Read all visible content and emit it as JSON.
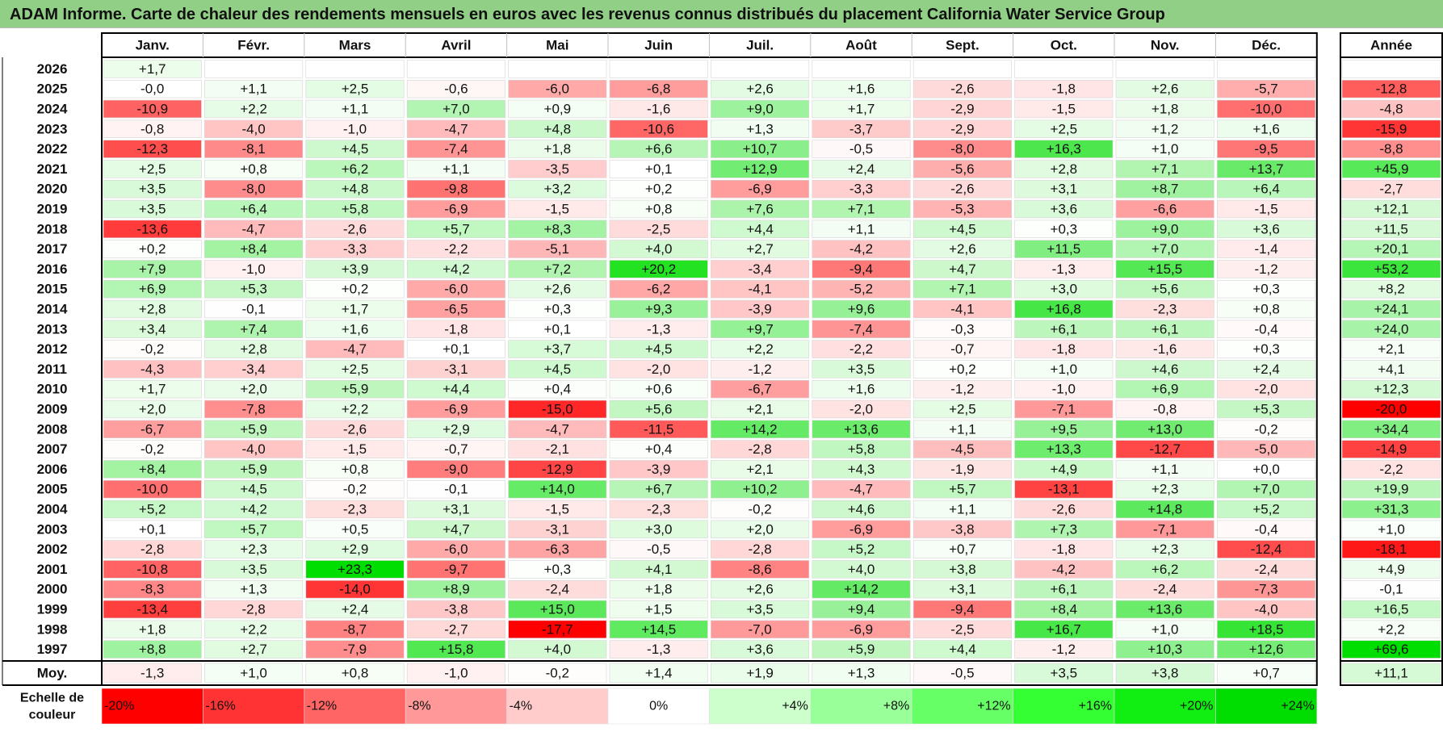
{
  "title": "ADAM Informe. Carte de chaleur des rendements mensuels en euros avec les revenus connus distribués du placement California Water Service Group",
  "chart_data": {
    "type": "heatmap",
    "months": [
      "Janv.",
      "Févr.",
      "Mars",
      "Avril",
      "Mai",
      "Juin",
      "Juil.",
      "Août",
      "Sept.",
      "Oct.",
      "Nov.",
      "Déc."
    ],
    "year_header": "Année",
    "rows": [
      {
        "year": "2026",
        "values": [
          "+1,7",
          null,
          null,
          null,
          null,
          null,
          null,
          null,
          null,
          null,
          null,
          null
        ],
        "annual": null
      },
      {
        "year": "2025",
        "values": [
          "-0,0",
          "+1,1",
          "+2,5",
          "-0,6",
          "-6,0",
          "-6,8",
          "+2,6",
          "+1,6",
          "-2,6",
          "-1,8",
          "+2,6",
          "-5,7"
        ],
        "annual": "-12,8"
      },
      {
        "year": "2024",
        "values": [
          "-10,9",
          "+2,2",
          "+1,1",
          "+7,0",
          "+0,9",
          "-1,6",
          "+9,0",
          "+1,7",
          "-2,9",
          "-1,5",
          "+1,8",
          "-10,0"
        ],
        "annual": "-4,8"
      },
      {
        "year": "2023",
        "values": [
          "-0,8",
          "-4,0",
          "-1,0",
          "-4,7",
          "+4,8",
          "-10,6",
          "+1,3",
          "-3,7",
          "-2,9",
          "+2,5",
          "+1,2",
          "+1,6"
        ],
        "annual": "-15,9"
      },
      {
        "year": "2022",
        "values": [
          "-12,3",
          "-8,1",
          "+4,5",
          "-7,4",
          "+1,8",
          "+6,6",
          "+10,7",
          "-0,5",
          "-8,0",
          "+16,3",
          "+1,0",
          "-9,5"
        ],
        "annual": "-8,8"
      },
      {
        "year": "2021",
        "values": [
          "+2,5",
          "+0,8",
          "+6,2",
          "+1,1",
          "-3,5",
          "+0,1",
          "+12,9",
          "+2,4",
          "-5,6",
          "+2,8",
          "+7,1",
          "+13,7"
        ],
        "annual": "+45,9"
      },
      {
        "year": "2020",
        "values": [
          "+3,5",
          "-8,0",
          "+4,8",
          "-9,8",
          "+3,2",
          "+0,2",
          "-6,9",
          "-3,3",
          "-2,6",
          "+3,1",
          "+8,7",
          "+6,4"
        ],
        "annual": "-2,7"
      },
      {
        "year": "2019",
        "values": [
          "+3,5",
          "+6,4",
          "+5,8",
          "-6,9",
          "-1,5",
          "+0,8",
          "+7,6",
          "+7,1",
          "-5,3",
          "+3,6",
          "-6,6",
          "-1,5"
        ],
        "annual": "+12,1"
      },
      {
        "year": "2018",
        "values": [
          "-13,6",
          "-4,7",
          "-2,6",
          "+5,7",
          "+8,3",
          "-2,5",
          "+4,4",
          "+1,1",
          "+4,5",
          "+0,3",
          "+9,0",
          "+3,6"
        ],
        "annual": "+11,5"
      },
      {
        "year": "2017",
        "values": [
          "+0,2",
          "+8,4",
          "-3,3",
          "-2,2",
          "-5,1",
          "+4,0",
          "+2,7",
          "-4,2",
          "+2,6",
          "+11,5",
          "+7,0",
          "-1,4"
        ],
        "annual": "+20,1"
      },
      {
        "year": "2016",
        "values": [
          "+7,9",
          "-1,0",
          "+3,9",
          "+4,2",
          "+7,2",
          "+20,2",
          "-3,4",
          "-9,4",
          "+4,7",
          "-1,3",
          "+15,5",
          "-1,2"
        ],
        "annual": "+53,2"
      },
      {
        "year": "2015",
        "values": [
          "+6,9",
          "+5,3",
          "+0,2",
          "-6,0",
          "+2,6",
          "-6,2",
          "-4,1",
          "-5,2",
          "+7,1",
          "+3,0",
          "+5,6",
          "+0,3"
        ],
        "annual": "+8,2"
      },
      {
        "year": "2014",
        "values": [
          "+2,8",
          "-0,1",
          "+1,7",
          "-6,5",
          "+0,3",
          "+9,3",
          "-3,9",
          "+9,6",
          "-4,1",
          "+16,8",
          "-2,3",
          "+0,8"
        ],
        "annual": "+24,1"
      },
      {
        "year": "2013",
        "values": [
          "+3,4",
          "+7,4",
          "+1,6",
          "-1,8",
          "+0,1",
          "-1,3",
          "+9,7",
          "-7,4",
          "-0,3",
          "+6,1",
          "+6,1",
          "-0,4"
        ],
        "annual": "+24,0"
      },
      {
        "year": "2012",
        "values": [
          "-0,2",
          "+2,8",
          "-4,7",
          "+0,1",
          "+3,7",
          "+4,5",
          "+2,2",
          "-2,2",
          "-0,7",
          "-1,8",
          "-1,6",
          "+0,3"
        ],
        "annual": "+2,1"
      },
      {
        "year": "2011",
        "values": [
          "-4,3",
          "-3,4",
          "+2,5",
          "-3,1",
          "+4,5",
          "-2,0",
          "-1,2",
          "+3,5",
          "+0,2",
          "+1,0",
          "+4,6",
          "+2,4"
        ],
        "annual": "+4,1"
      },
      {
        "year": "2010",
        "values": [
          "+1,7",
          "+2,0",
          "+5,9",
          "+4,4",
          "+0,4",
          "+0,6",
          "-6,7",
          "+1,6",
          "-1,2",
          "-1,0",
          "+6,9",
          "-2,0"
        ],
        "annual": "+12,3"
      },
      {
        "year": "2009",
        "values": [
          "+2,0",
          "-7,8",
          "+2,2",
          "-6,9",
          "-15,0",
          "+5,6",
          "+2,1",
          "-2,0",
          "+2,5",
          "-7,1",
          "-0,8",
          "+5,3"
        ],
        "annual": "-20,0"
      },
      {
        "year": "2008",
        "values": [
          "-6,7",
          "+5,9",
          "-2,6",
          "+2,9",
          "-4,7",
          "-11,5",
          "+14,2",
          "+13,6",
          "+1,1",
          "+9,5",
          "+13,0",
          "-0,2"
        ],
        "annual": "+34,4"
      },
      {
        "year": "2007",
        "values": [
          "-0,2",
          "-4,0",
          "-1,5",
          "-0,7",
          "-2,1",
          "+0,4",
          "-2,8",
          "+5,8",
          "-4,5",
          "+13,3",
          "-12,7",
          "-5,0"
        ],
        "annual": "-14,9"
      },
      {
        "year": "2006",
        "values": [
          "+8,4",
          "+5,9",
          "+0,8",
          "-9,0",
          "-12,9",
          "-3,9",
          "+2,1",
          "+4,3",
          "-1,9",
          "+4,9",
          "+1,1",
          "+0,0"
        ],
        "annual": "-2,2"
      },
      {
        "year": "2005",
        "values": [
          "-10,0",
          "+4,5",
          "-0,2",
          "-0,1",
          "+14,0",
          "+6,7",
          "+10,2",
          "-4,7",
          "+5,7",
          "-13,1",
          "+2,3",
          "+7,0"
        ],
        "annual": "+19,9"
      },
      {
        "year": "2004",
        "values": [
          "+5,2",
          "+4,2",
          "-2,3",
          "+3,1",
          "-1,5",
          "-2,3",
          "-0,2",
          "+4,6",
          "+1,1",
          "-2,6",
          "+14,8",
          "+5,2"
        ],
        "annual": "+31,3"
      },
      {
        "year": "2003",
        "values": [
          "+0,1",
          "+5,7",
          "+0,5",
          "+4,7",
          "-3,1",
          "+3,0",
          "+2,0",
          "-6,9",
          "-3,8",
          "+7,3",
          "-7,1",
          "-0,4"
        ],
        "annual": "+1,0"
      },
      {
        "year": "2002",
        "values": [
          "-2,8",
          "+2,3",
          "+2,9",
          "-6,0",
          "-6,3",
          "-0,5",
          "-2,8",
          "+5,2",
          "+0,7",
          "-1,8",
          "+2,3",
          "-12,4"
        ],
        "annual": "-18,1"
      },
      {
        "year": "2001",
        "values": [
          "-10,8",
          "+3,5",
          "+23,3",
          "-9,7",
          "+0,3",
          "+4,1",
          "-8,6",
          "+4,0",
          "+3,8",
          "-4,2",
          "+6,2",
          "-2,4"
        ],
        "annual": "+4,9"
      },
      {
        "year": "2000",
        "values": [
          "-8,3",
          "+1,3",
          "-14,0",
          "+8,9",
          "-2,4",
          "+1,8",
          "+2,6",
          "+14,2",
          "+3,1",
          "+6,1",
          "-2,4",
          "-7,3"
        ],
        "annual": "-0,1"
      },
      {
        "year": "1999",
        "values": [
          "-13,4",
          "-2,8",
          "+2,4",
          "-3,8",
          "+15,0",
          "+1,5",
          "+3,5",
          "+9,4",
          "-9,4",
          "+8,4",
          "+13,6",
          "-4,0"
        ],
        "annual": "+16,5"
      },
      {
        "year": "1998",
        "values": [
          "+1,8",
          "+2,2",
          "-8,7",
          "-2,7",
          "-17,7",
          "+14,5",
          "-7,0",
          "-6,9",
          "-2,5",
          "+16,7",
          "+1,0",
          "+18,5"
        ],
        "annual": "+2,2"
      },
      {
        "year": "1997",
        "values": [
          "+8,8",
          "+2,7",
          "-7,9",
          "+15,8",
          "+4,0",
          "-1,3",
          "+3,6",
          "+5,9",
          "+4,4",
          "-1,2",
          "+10,3",
          "+12,6"
        ],
        "annual": "+69,6"
      }
    ],
    "average": {
      "label": "Moy.",
      "values": [
        "-1,3",
        "+1,0",
        "+0,8",
        "-1,0",
        "-0,2",
        "+1,4",
        "+1,9",
        "+1,3",
        "-0,5",
        "+3,5",
        "+3,8",
        "+0,7"
      ],
      "annual": "+11,1"
    },
    "legend": {
      "label_line1": "Echelle de",
      "label_line2": "couleur",
      "items": [
        {
          "label": "-20%",
          "color": "#ff0000"
        },
        {
          "label": "-16%",
          "color": "#ff3333"
        },
        {
          "label": "-12%",
          "color": "#ff6565"
        },
        {
          "label": "-8%",
          "color": "#ff9898"
        },
        {
          "label": "-4%",
          "color": "#ffcbcb"
        },
        {
          "label": "0%",
          "color": "#ffffff"
        },
        {
          "label": "+4%",
          "color": "#ccffcc"
        },
        {
          "label": "+8%",
          "color": "#99ff99"
        },
        {
          "label": "+12%",
          "color": "#66ff66"
        },
        {
          "label": "+16%",
          "color": "#33ff33"
        },
        {
          "label": "+20%",
          "color": "#11ee11"
        },
        {
          "label": "+24%",
          "color": "#00dd00"
        }
      ]
    }
  }
}
